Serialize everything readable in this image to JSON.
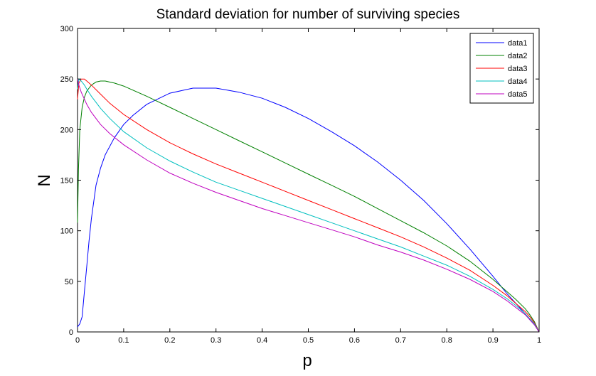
{
  "chart_data": {
    "type": "line",
    "title": "Standard deviation for number of surviving species",
    "xlabel": "p",
    "ylabel": "N",
    "xlim": [
      0,
      1
    ],
    "ylim": [
      0,
      300
    ],
    "x_ticks": [
      "0",
      "0.1",
      "0.2",
      "0.3",
      "0.4",
      "0.5",
      "0.6",
      "0.7",
      "0.8",
      "0.9",
      "1"
    ],
    "y_ticks": [
      "0",
      "50",
      "100",
      "150",
      "200",
      "250",
      "300"
    ],
    "grid": false,
    "legend_position": "top-right",
    "series": [
      {
        "name": "data1",
        "color": "#0000ff",
        "x": [
          0,
          0.005,
          0.01,
          0.015,
          0.02,
          0.025,
          0.03,
          0.04,
          0.05,
          0.06,
          0.08,
          0.1,
          0.12,
          0.15,
          0.2,
          0.25,
          0.3,
          0.35,
          0.4,
          0.45,
          0.5,
          0.55,
          0.6,
          0.65,
          0.7,
          0.75,
          0.8,
          0.85,
          0.9,
          0.93,
          0.95,
          0.97,
          0.98,
          0.99,
          1.0
        ],
        "y": [
          5,
          8,
          15,
          40,
          65,
          90,
          112,
          145,
          162,
          175,
          192,
          205,
          214,
          225,
          236,
          241,
          241,
          237,
          231,
          222,
          211,
          198,
          184,
          168,
          150,
          130,
          107,
          82,
          55,
          38,
          28,
          18,
          12,
          7,
          0
        ]
      },
      {
        "name": "data2",
        "color": "#008000",
        "x": [
          0,
          0.002,
          0.005,
          0.01,
          0.015,
          0.02,
          0.03,
          0.04,
          0.05,
          0.06,
          0.08,
          0.1,
          0.15,
          0.2,
          0.25,
          0.3,
          0.35,
          0.4,
          0.45,
          0.5,
          0.55,
          0.6,
          0.65,
          0.7,
          0.75,
          0.8,
          0.85,
          0.9,
          0.93,
          0.95,
          0.97,
          0.98,
          0.99,
          1.0
        ],
        "y": [
          108,
          160,
          200,
          222,
          232,
          238,
          244,
          247,
          248,
          248,
          246,
          243,
          233,
          222,
          211,
          200,
          189,
          178,
          167,
          156,
          145,
          134,
          122,
          110,
          98,
          85,
          70,
          52,
          40,
          32,
          23,
          17,
          10,
          0
        ]
      },
      {
        "name": "data3",
        "color": "#ff0000",
        "x": [
          0,
          0.003,
          0.008,
          0.015,
          0.02,
          0.03,
          0.05,
          0.07,
          0.1,
          0.15,
          0.2,
          0.25,
          0.3,
          0.35,
          0.4,
          0.45,
          0.5,
          0.55,
          0.6,
          0.65,
          0.7,
          0.75,
          0.8,
          0.85,
          0.9,
          0.93,
          0.95,
          0.97,
          0.98,
          0.99,
          1.0
        ],
        "y": [
          230,
          246,
          250,
          250,
          248,
          244,
          235,
          226,
          215,
          200,
          187,
          176,
          166,
          157,
          148,
          139,
          130,
          121,
          112,
          103,
          94,
          84,
          73,
          61,
          46,
          36,
          28,
          20,
          15,
          9,
          0
        ]
      },
      {
        "name": "data4",
        "color": "#00bfbf",
        "x": [
          0,
          0.003,
          0.008,
          0.015,
          0.02,
          0.03,
          0.05,
          0.07,
          0.1,
          0.15,
          0.2,
          0.25,
          0.3,
          0.35,
          0.4,
          0.45,
          0.5,
          0.55,
          0.6,
          0.65,
          0.7,
          0.75,
          0.8,
          0.85,
          0.9,
          0.93,
          0.95,
          0.97,
          0.98,
          0.99,
          1.0
        ],
        "y": [
          240,
          250,
          248,
          244,
          240,
          233,
          221,
          211,
          198,
          182,
          169,
          158,
          148,
          140,
          132,
          124,
          116,
          108,
          100,
          92,
          84,
          75,
          66,
          55,
          42,
          33,
          26,
          18,
          13,
          8,
          0
        ]
      },
      {
        "name": "data5",
        "color": "#bf00bf",
        "x": [
          0,
          0.003,
          0.008,
          0.015,
          0.02,
          0.03,
          0.05,
          0.07,
          0.1,
          0.15,
          0.2,
          0.25,
          0.3,
          0.35,
          0.4,
          0.45,
          0.5,
          0.55,
          0.6,
          0.65,
          0.7,
          0.75,
          0.8,
          0.85,
          0.9,
          0.93,
          0.95,
          0.97,
          0.98,
          0.99,
          1.0
        ],
        "y": [
          250,
          244,
          237,
          230,
          225,
          217,
          205,
          196,
          185,
          170,
          157,
          147,
          138,
          130,
          122,
          115,
          108,
          101,
          94,
          86,
          79,
          71,
          62,
          52,
          40,
          31,
          24,
          17,
          12,
          7,
          0
        ]
      }
    ]
  }
}
